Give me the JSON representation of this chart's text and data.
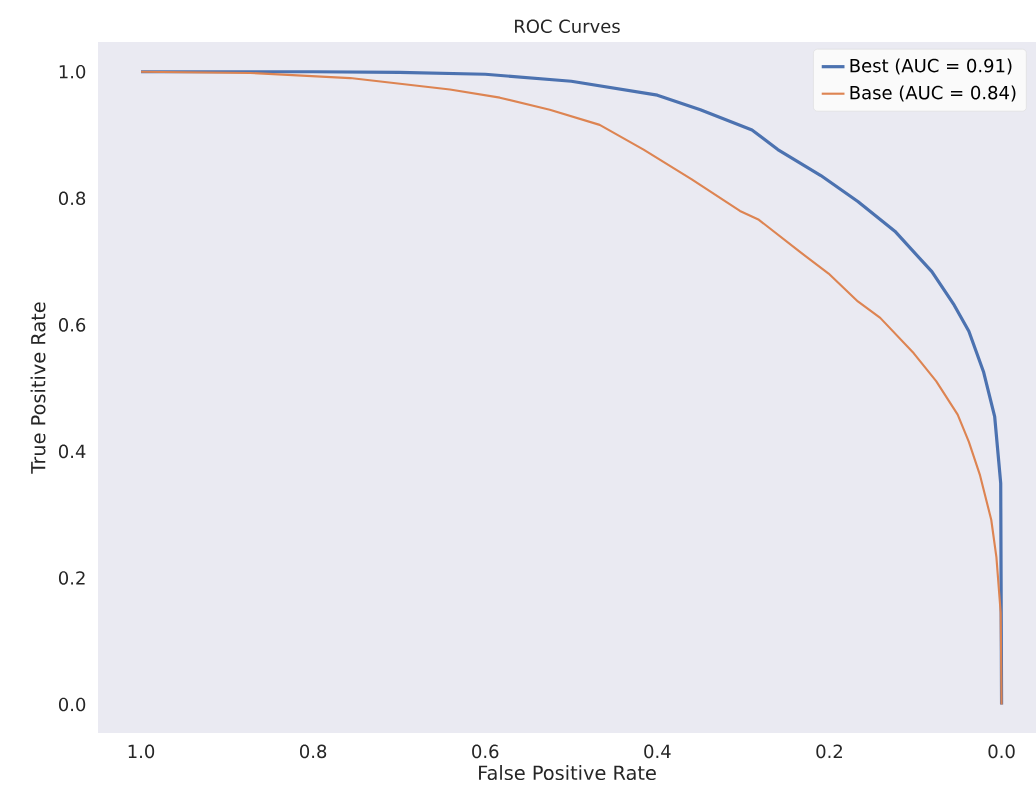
{
  "chart_data": {
    "type": "line",
    "title": "ROC Curves",
    "xlabel": "False Positive Rate",
    "ylabel": "True Positive Rate",
    "xlim": [
      1.05,
      -0.04
    ],
    "ylim": [
      -0.045,
      1.047
    ],
    "xticks": [
      {
        "value": 1.0,
        "label": "1.0"
      },
      {
        "value": 0.8,
        "label": "0.8"
      },
      {
        "value": 0.6,
        "label": "0.6"
      },
      {
        "value": 0.4,
        "label": "0.4"
      },
      {
        "value": 0.2,
        "label": "0.2"
      },
      {
        "value": 0.0,
        "label": "0.0"
      }
    ],
    "yticks": [
      {
        "value": 0.0,
        "label": "0.0"
      },
      {
        "value": 0.2,
        "label": "0.2"
      },
      {
        "value": 0.4,
        "label": "0.4"
      },
      {
        "value": 0.6,
        "label": "0.6"
      },
      {
        "value": 0.8,
        "label": "0.8"
      },
      {
        "value": 1.0,
        "label": "1.0"
      }
    ],
    "grid": false,
    "legend": "top right",
    "marker": "none",
    "line_style": "solid",
    "series": [
      {
        "name": "Best (AUC = 0.91)",
        "color": "#4c72b0",
        "x": [
          1.0,
          0.8,
          0.7,
          0.6,
          0.5,
          0.4,
          0.35,
          0.29,
          0.26,
          0.21,
          0.167,
          0.124,
          0.081,
          0.055,
          0.038,
          0.021,
          0.008,
          0.001,
          0.0
        ],
        "values": [
          1.0,
          1.0,
          0.999,
          0.996,
          0.985,
          0.963,
          0.94,
          0.908,
          0.877,
          0.836,
          0.795,
          0.748,
          0.684,
          0.631,
          0.59,
          0.526,
          0.455,
          0.35,
          0.0
        ]
      },
      {
        "name": "Base (AUC = 0.84)",
        "color": "#dd8452",
        "x": [
          1.0,
          0.873,
          0.757,
          0.641,
          0.583,
          0.525,
          0.467,
          0.416,
          0.36,
          0.304,
          0.282,
          0.235,
          0.201,
          0.167,
          0.141,
          0.102,
          0.076,
          0.051,
          0.038,
          0.025,
          0.012,
          0.006,
          0.001,
          0.0
        ],
        "values": [
          1.0,
          0.998,
          0.99,
          0.972,
          0.959,
          0.94,
          0.916,
          0.877,
          0.83,
          0.78,
          0.766,
          0.716,
          0.681,
          0.637,
          0.611,
          0.555,
          0.511,
          0.458,
          0.415,
          0.362,
          0.292,
          0.233,
          0.145,
          0.0
        ]
      }
    ]
  }
}
